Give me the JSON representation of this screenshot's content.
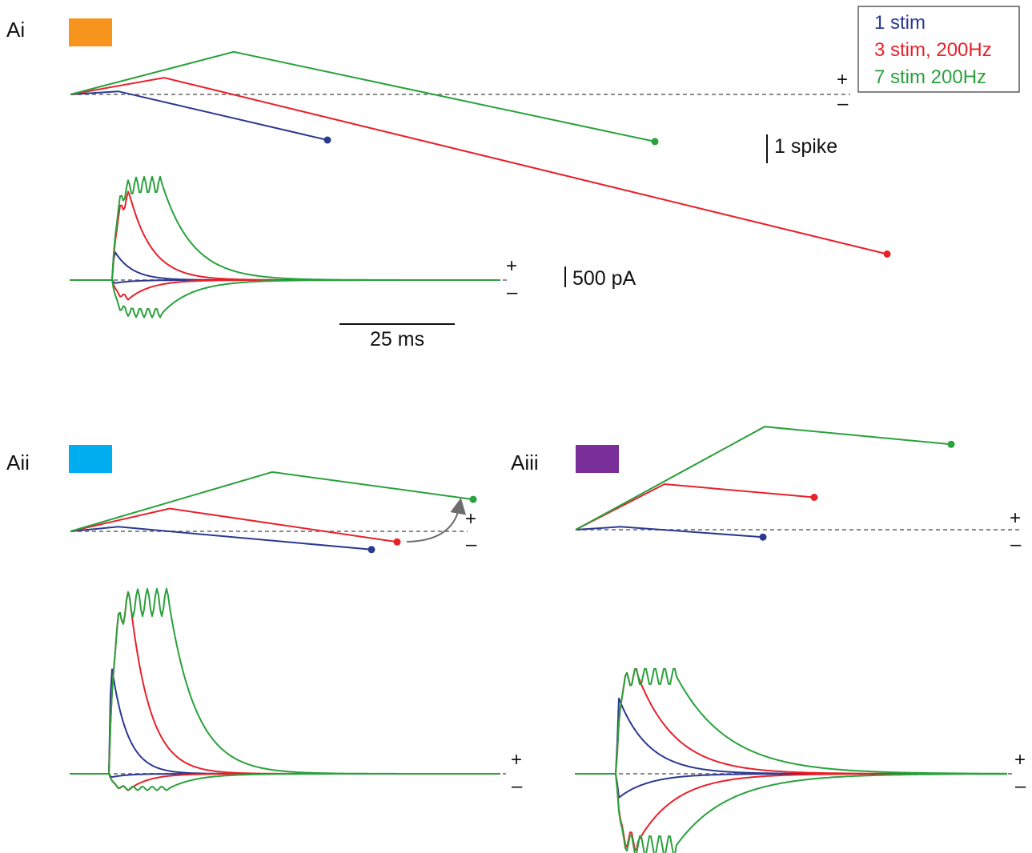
{
  "colors": {
    "one_stim": "#2b3990",
    "three_stim": "#e8212b",
    "seven_stim": "#2aa13c",
    "ai_swatch": "#f7941d",
    "aii_swatch": "#00aeef",
    "aiii_swatch": "#7a2e9a",
    "baseline": "#8a8a8a"
  },
  "legend": {
    "items": [
      {
        "label": "1 stim",
        "color": "#2b3990"
      },
      {
        "label": "3 stim, 200Hz",
        "color": "#e8212b"
      },
      {
        "label": "7 stim 200Hz",
        "color": "#2aa13c"
      }
    ]
  },
  "scale_bars": {
    "spike": "1 spike",
    "current": "500 pA",
    "time": "25 ms"
  },
  "signs": {
    "plus": "+",
    "minus": "–"
  },
  "chart_data": [
    {
      "type": "line",
      "panel": "Ai",
      "swatch_color": "#f7941d",
      "summary": {
        "series": [
          {
            "name": "1 stim",
            "points": [
              [
                0,
                0
              ],
              [
                1,
                0.02
              ],
              [
                2,
                -0.3
              ]
            ]
          },
          {
            "name": "3 stim, 200Hz",
            "points": [
              [
                0,
                0
              ],
              [
                1,
                0.11
              ],
              [
                2,
                -1.05
              ]
            ]
          },
          {
            "name": "7 stim 200Hz",
            "points": [
              [
                0,
                0
              ],
              [
                1,
                0.28
              ],
              [
                2,
                -0.31
              ]
            ]
          }
        ]
      },
      "currents": {
        "series": [
          {
            "name": "1 stim",
            "peak_pA": 830,
            "min_pA": -90
          },
          {
            "name": "3 stim, 200Hz",
            "peak_pA": 2650,
            "min_pA": -590
          },
          {
            "name": "7 stim 200Hz",
            "peak_pA": 3100,
            "min_pA": -1120
          }
        ]
      }
    },
    {
      "type": "line",
      "panel": "Aii",
      "swatch_color": "#00aeef",
      "summary": {
        "series": [
          {
            "name": "1 stim",
            "points": [
              [
                0,
                0
              ],
              [
                1,
                0.03
              ],
              [
                2,
                -0.12
              ]
            ]
          },
          {
            "name": "3 stim, 200Hz",
            "points": [
              [
                0,
                0
              ],
              [
                1,
                0.15
              ],
              [
                2,
                -0.07
              ]
            ]
          },
          {
            "name": "7 stim 200Hz",
            "points": [
              [
                0,
                0
              ],
              [
                1,
                0.39
              ],
              [
                2,
                0.21
              ]
            ]
          }
        ]
      },
      "currents": {
        "series": [
          {
            "name": "1 stim",
            "peak_pA": 2540,
            "min_pA": -80
          },
          {
            "name": "3 stim, 200Hz",
            "peak_pA": 4420,
            "min_pA": -400
          },
          {
            "name": "7 stim 200Hz",
            "peak_pA": 4500,
            "min_pA": -400
          }
        ]
      }
    },
    {
      "type": "line",
      "panel": "Aiii",
      "swatch_color": "#7a2e9a",
      "summary": {
        "series": [
          {
            "name": "1 stim",
            "points": [
              [
                0,
                0
              ],
              [
                1,
                0.02
              ],
              [
                2,
                -0.05
              ]
            ]
          },
          {
            "name": "3 stim, 200Hz",
            "points": [
              [
                0,
                0
              ],
              [
                1,
                0.31
              ],
              [
                2,
                0.22
              ]
            ]
          },
          {
            "name": "7 stim 200Hz",
            "points": [
              [
                0,
                0
              ],
              [
                1,
                0.7
              ],
              [
                2,
                0.58
              ]
            ]
          }
        ]
      },
      "currents": {
        "series": [
          {
            "name": "1 stim",
            "peak_pA": 1830,
            "min_pA": -580
          },
          {
            "name": "3 stim, 200Hz",
            "peak_pA": 2550,
            "min_pA": -1850
          },
          {
            "name": "7 stim 200Hz",
            "peak_pA": 2550,
            "min_pA": -1950
          }
        ]
      }
    }
  ]
}
